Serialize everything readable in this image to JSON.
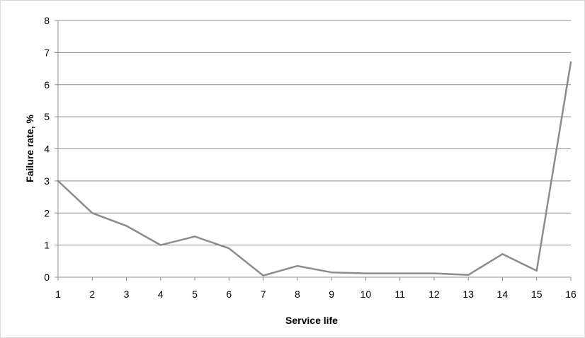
{
  "chart_data": {
    "type": "line",
    "title": "",
    "xlabel": "Service life",
    "ylabel": "Failure rate, %",
    "x": [
      1,
      2,
      3,
      4,
      5,
      6,
      7,
      8,
      9,
      10,
      11,
      12,
      13,
      14,
      15,
      16
    ],
    "series": [
      {
        "values": [
          3.0,
          2.0,
          1.6,
          1.0,
          1.27,
          0.9,
          0.05,
          0.35,
          0.15,
          0.12,
          0.12,
          0.12,
          0.07,
          0.72,
          0.2,
          6.7
        ],
        "color": "#8c8c8c"
      }
    ],
    "xticks": [
      "1",
      "2",
      "3",
      "4",
      "5",
      "6",
      "7",
      "8",
      "9",
      "10",
      "11",
      "12",
      "13",
      "14",
      "15",
      "16"
    ],
    "yticks": [
      "0",
      "1",
      "2",
      "3",
      "4",
      "5",
      "6",
      "7",
      "8"
    ],
    "xlim": [
      1,
      16
    ],
    "ylim": [
      0,
      8
    ],
    "grid": "horizontal",
    "legend": "none"
  }
}
